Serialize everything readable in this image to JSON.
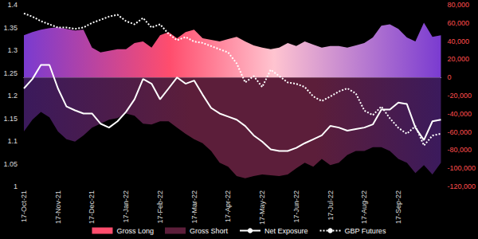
{
  "chart_data": {
    "type": "area",
    "categories": [
      "17-Oct-21",
      null,
      null,
      null,
      "17-Nov-21",
      null,
      null,
      null,
      "17-Dec-21",
      null,
      null,
      null,
      "17-Jan-22",
      null,
      null,
      null,
      "17-Feb-22",
      null,
      null,
      null,
      "17-Mar-22",
      null,
      null,
      null,
      "17-Apr-22",
      null,
      null,
      null,
      "17-May-22",
      null,
      null,
      null,
      "17-Jun-22",
      null,
      null,
      null,
      "17-Jul-22",
      null,
      null,
      null,
      "17-Aug-22",
      null,
      null,
      null,
      "17-Sep-22",
      null,
      null,
      null,
      null,
      null
    ],
    "series": [
      {
        "name": "Gross Long",
        "type": "area",
        "axis": "y2",
        "color": "#ff4d6d",
        "values": [
          46500,
          50000,
          52600,
          54300,
          55200,
          53400,
          51700,
          52600,
          32800,
          27600,
          29300,
          31000,
          31000,
          37900,
          39700,
          32800,
          46500,
          50000,
          43100,
          50000,
          52600,
          43100,
          41400,
          39700,
          42200,
          44800,
          39700,
          35300,
          32800,
          31000,
          32800,
          37900,
          34500,
          39700,
          36200,
          32800,
          34500,
          34500,
          32800,
          35300,
          37900,
          44000,
          56900,
          58600,
          53400,
          44000,
          39700,
          60300,
          44800,
          46500
        ]
      },
      {
        "name": "Gross Short",
        "type": "area",
        "axis": "y2",
        "color": "#5c1e3a",
        "values": [
          -59500,
          -46500,
          -37900,
          -44000,
          -59500,
          -68100,
          -70700,
          -63800,
          -55200,
          -50900,
          -46500,
          -44800,
          -39700,
          -42200,
          -50900,
          -51700,
          -48300,
          -48300,
          -55200,
          -62100,
          -68100,
          -72400,
          -81000,
          -93900,
          -98300,
          -108600,
          -111100,
          -108600,
          -106900,
          -107800,
          -108600,
          -106900,
          -100000,
          -93900,
          -98300,
          -89700,
          -96500,
          -93900,
          -85300,
          -81000,
          -81000,
          -76700,
          -76700,
          -81000,
          -89700,
          -93900,
          -105200,
          -96500,
          -106900,
          -93900
        ]
      },
      {
        "name": "Net Exposure",
        "type": "line",
        "axis": "y2",
        "color": "#ffffff",
        "line_style": "solid",
        "values": [
          -12100,
          -1700,
          13800,
          13800,
          -12100,
          -31900,
          -36200,
          -39700,
          -39700,
          -50900,
          -55200,
          -48300,
          -37900,
          -24100,
          -1700,
          -6900,
          -24100,
          -12100,
          0,
          -6900,
          -3400,
          -19000,
          -33600,
          -39700,
          -43100,
          -46500,
          -53400,
          -63800,
          -70700,
          -79300,
          -81000,
          -81000,
          -77600,
          -72400,
          -68100,
          -63800,
          -53400,
          -55200,
          -58600,
          -56900,
          -55200,
          -51700,
          -35300,
          -35300,
          -27600,
          -29300,
          -55200,
          -69000,
          -48300,
          -46500
        ]
      },
      {
        "name": "GBP Futures",
        "type": "line",
        "axis": "y",
        "color": "#ffffff",
        "line_style": "dotted",
        "values": [
          1.381,
          1.374,
          1.364,
          1.357,
          1.35,
          1.35,
          1.347,
          1.35,
          1.36,
          1.367,
          1.374,
          1.378,
          1.364,
          1.357,
          1.371,
          1.35,
          1.357,
          1.336,
          1.322,
          1.329,
          1.319,
          1.316,
          1.309,
          1.302,
          1.295,
          1.271,
          1.229,
          1.243,
          1.219,
          1.257,
          1.243,
          1.229,
          1.226,
          1.219,
          1.198,
          1.188,
          1.198,
          1.209,
          1.216,
          1.205,
          1.167,
          1.157,
          1.176,
          1.15,
          1.129,
          1.116,
          1.133,
          1.09,
          1.112,
          1.116
        ]
      }
    ],
    "ylim": [
      1,
      1.4
    ],
    "yticks": [
      1,
      1.05,
      1.1,
      1.15,
      1.2,
      1.25,
      1.3,
      1.35,
      1.4
    ],
    "y2lim": [
      -120000,
      80000
    ],
    "y2ticks": [
      {
        "value": -120000,
        "label": "-120,000"
      },
      {
        "value": -100000,
        "label": "-100,000"
      },
      {
        "value": -80000,
        "label": "-80,000"
      },
      {
        "value": -60000,
        "label": "-60,000"
      },
      {
        "value": -40000,
        "label": "-40,000"
      },
      {
        "value": -20000,
        "label": "-20,000"
      },
      0,
      {
        "value": 20000,
        "label": "20,000"
      },
      {
        "value": 40000,
        "label": "40,000"
      },
      {
        "value": 60000,
        "label": "60,000"
      },
      {
        "value": 80000,
        "label": "80,000"
      }
    ],
    "grid": false,
    "legend": "bottom"
  }
}
